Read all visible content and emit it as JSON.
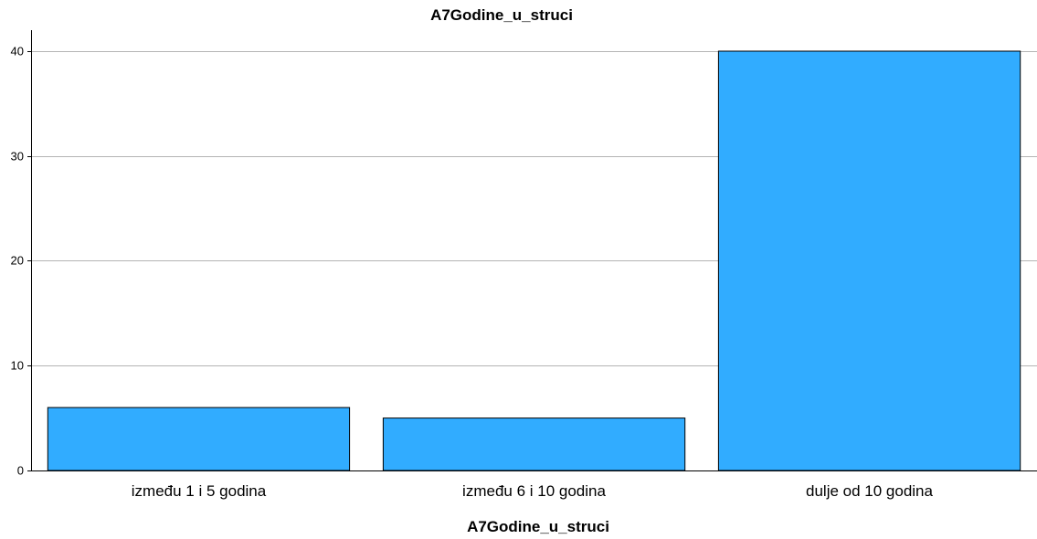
{
  "chart_data": {
    "type": "bar",
    "title": "A7Godine_u_struci",
    "xlabel": "A7Godine_u_struci",
    "ylabel": "",
    "categories": [
      "između 1 i 5 godina",
      "između 6 i 10 godina",
      "dulje od 10 godina"
    ],
    "values": [
      6,
      5,
      40
    ],
    "ylim": [
      0,
      42
    ],
    "yticks": [
      0,
      10,
      20,
      30,
      40
    ],
    "grid": true,
    "bar_color": "#31acff",
    "legend": "none"
  }
}
